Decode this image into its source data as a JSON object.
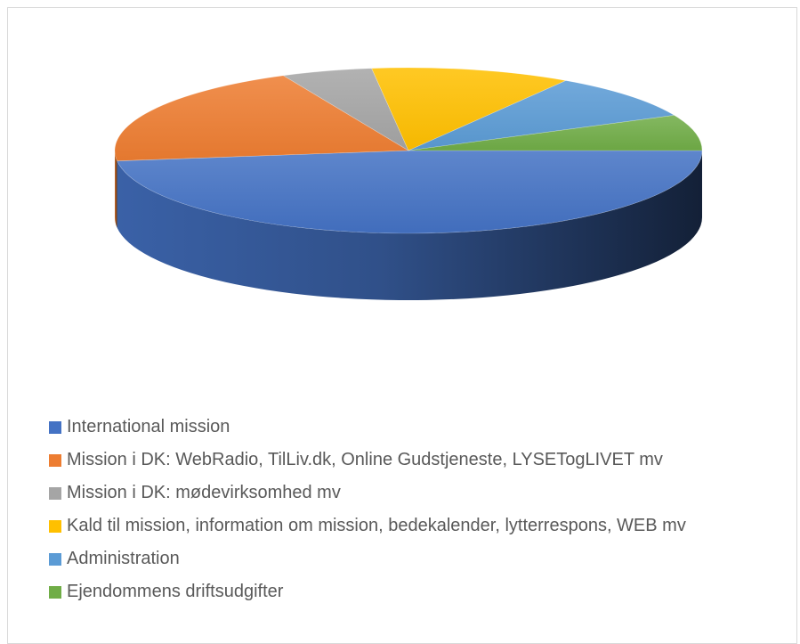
{
  "chart_data": {
    "type": "pie",
    "title": "",
    "legend_position": "bottom",
    "categories": [
      "International mission",
      "Mission i DK: WebRadio, TilLiv.dk, Online Gudstjeneste, LYSETogLIVET mv",
      "Mission i DK: mødevirksomhed mv",
      "Kald til mission, information om mission, bedekalender, lytterrespons, WEB mv",
      "Administration",
      "Ejendommens driftsudgifter"
    ],
    "values": [
      48,
      20,
      5,
      11,
      9,
      7
    ],
    "colors": [
      "#4472C4",
      "#ED7D31",
      "#A5A5A5",
      "#FFC000",
      "#5B9BD5",
      "#70AD47"
    ]
  }
}
